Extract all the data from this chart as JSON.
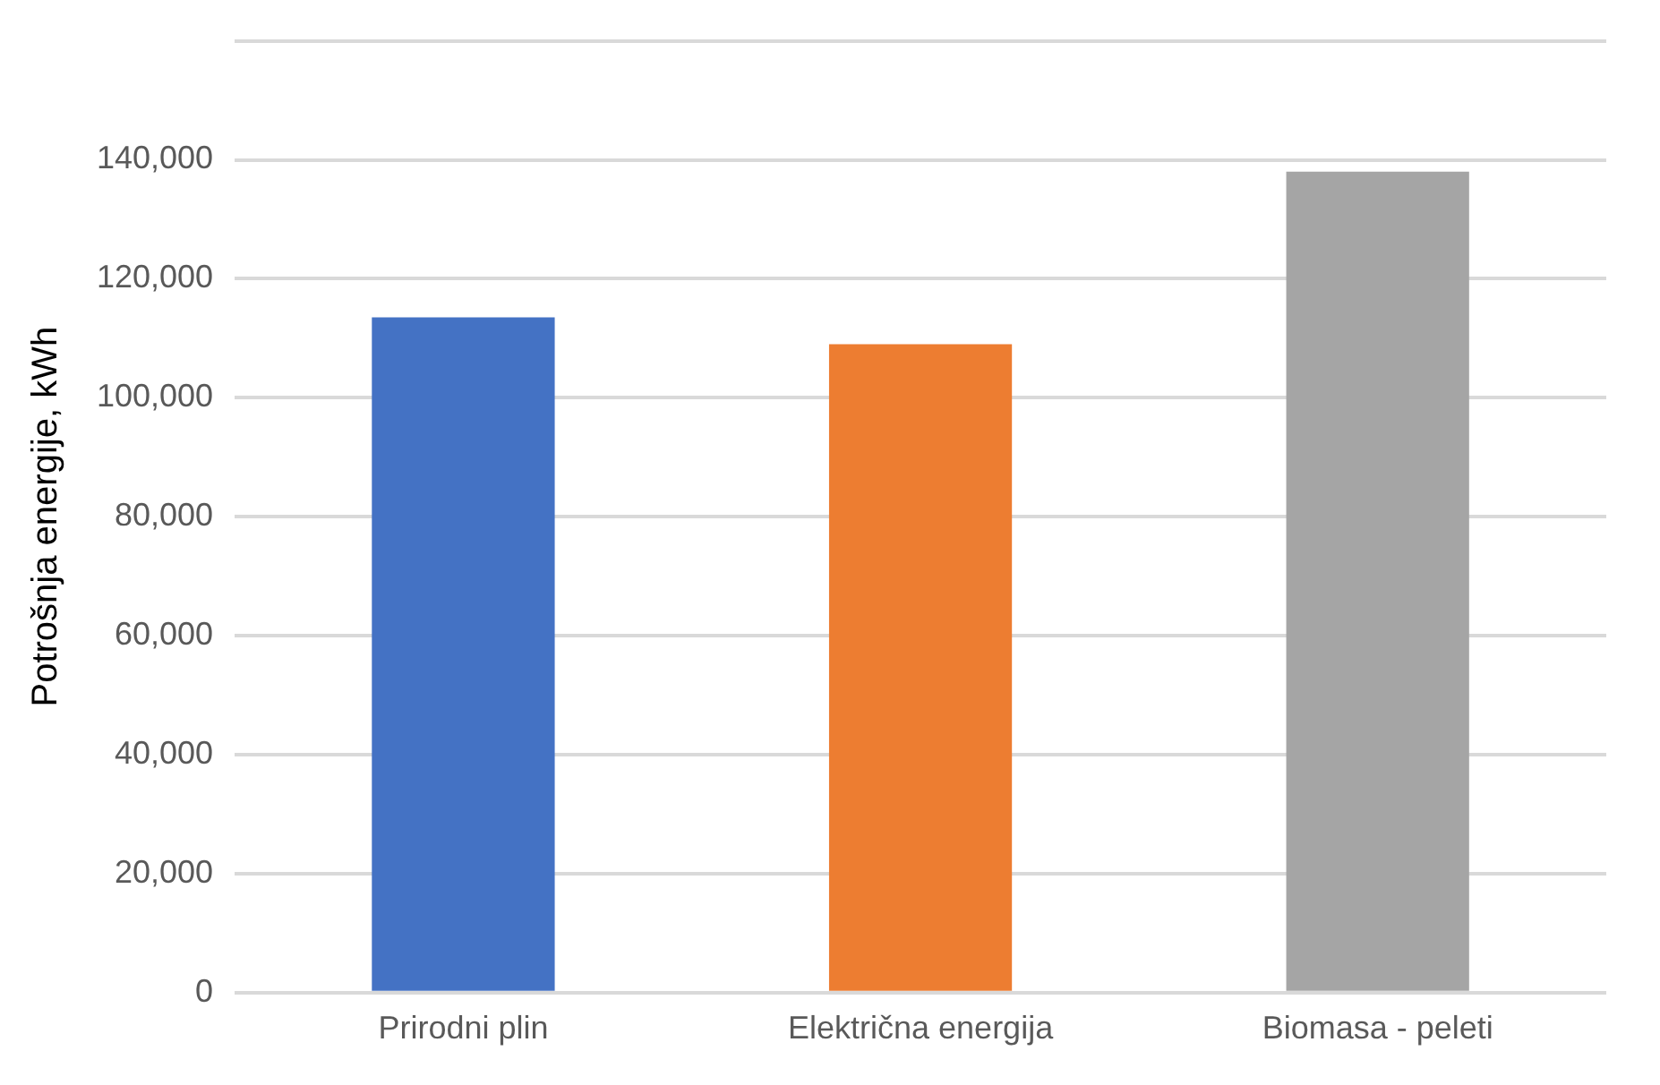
{
  "chart_data": {
    "type": "bar",
    "ylabel": "Potrošnja energije, kWh",
    "categories": [
      "Prirodni plin",
      "Električna energija",
      "Biomasa - peleti"
    ],
    "values": [
      113500,
      109000,
      138000
    ],
    "colors": [
      "#4472c4",
      "#ed7d31",
      "#a5a5a5"
    ],
    "ylim": [
      0,
      160000
    ],
    "yticks": [
      {
        "value": 0,
        "label": "0"
      },
      {
        "value": 20000,
        "label": "20,000"
      },
      {
        "value": 40000,
        "label": "40,000"
      },
      {
        "value": 60000,
        "label": "60,000"
      },
      {
        "value": 80000,
        "label": "80,000"
      },
      {
        "value": 100000,
        "label": "100,000"
      },
      {
        "value": 120000,
        "label": "120,000"
      },
      {
        "value": 140000,
        "label": "140,000"
      },
      {
        "value": 160000,
        "label": null
      }
    ],
    "grid": "y"
  }
}
